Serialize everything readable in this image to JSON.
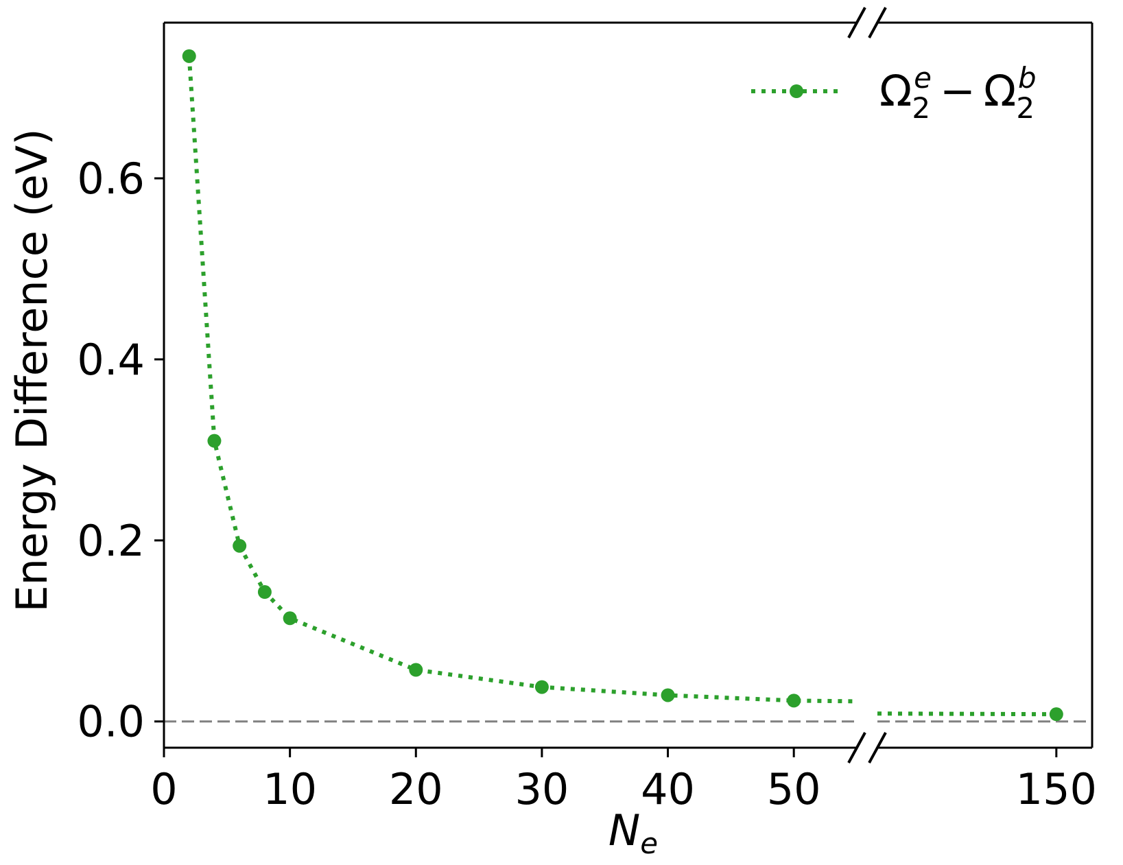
{
  "chart_data": {
    "type": "line",
    "title": "",
    "xlabel": {
      "main": "N",
      "sub": "e"
    },
    "ylabel": "Energy Difference (eV)",
    "x_axis": {
      "broken": true,
      "segments": [
        {
          "range": [
            0,
            55
          ]
        },
        {
          "range": [
            145,
            151
          ]
        }
      ],
      "ticks": [
        0,
        10,
        20,
        30,
        40,
        50,
        150
      ],
      "tick_labels": [
        "0",
        "10",
        "20",
        "30",
        "40",
        "50",
        "150"
      ]
    },
    "y_axis": {
      "ylim": [
        -0.029,
        0.772
      ],
      "ticks": [
        0.0,
        0.2,
        0.4,
        0.6
      ],
      "tick_labels": [
        "0.0",
        "0.2",
        "0.4",
        "0.6"
      ]
    },
    "reference_line": {
      "y": 0.0,
      "style": "dashed",
      "color": "#808080"
    },
    "grid": false,
    "legend": {
      "position": "top-right"
    },
    "series": [
      {
        "name": "Ω_2^e − Ω_2^b",
        "name_parts": {
          "sym1": "Ω",
          "sub1": "2",
          "sup1": "e",
          "op": "−",
          "sym2": "Ω",
          "sub2": "2",
          "sup2": "b"
        },
        "color": "#2ca02c",
        "line_style": "dotted",
        "marker": "circle",
        "x": [
          2,
          4,
          6,
          8,
          10,
          20,
          30,
          40,
          50,
          150
        ],
        "y": [
          0.735,
          0.31,
          0.194,
          0.143,
          0.114,
          0.057,
          0.038,
          0.029,
          0.023,
          0.008
        ]
      }
    ]
  }
}
